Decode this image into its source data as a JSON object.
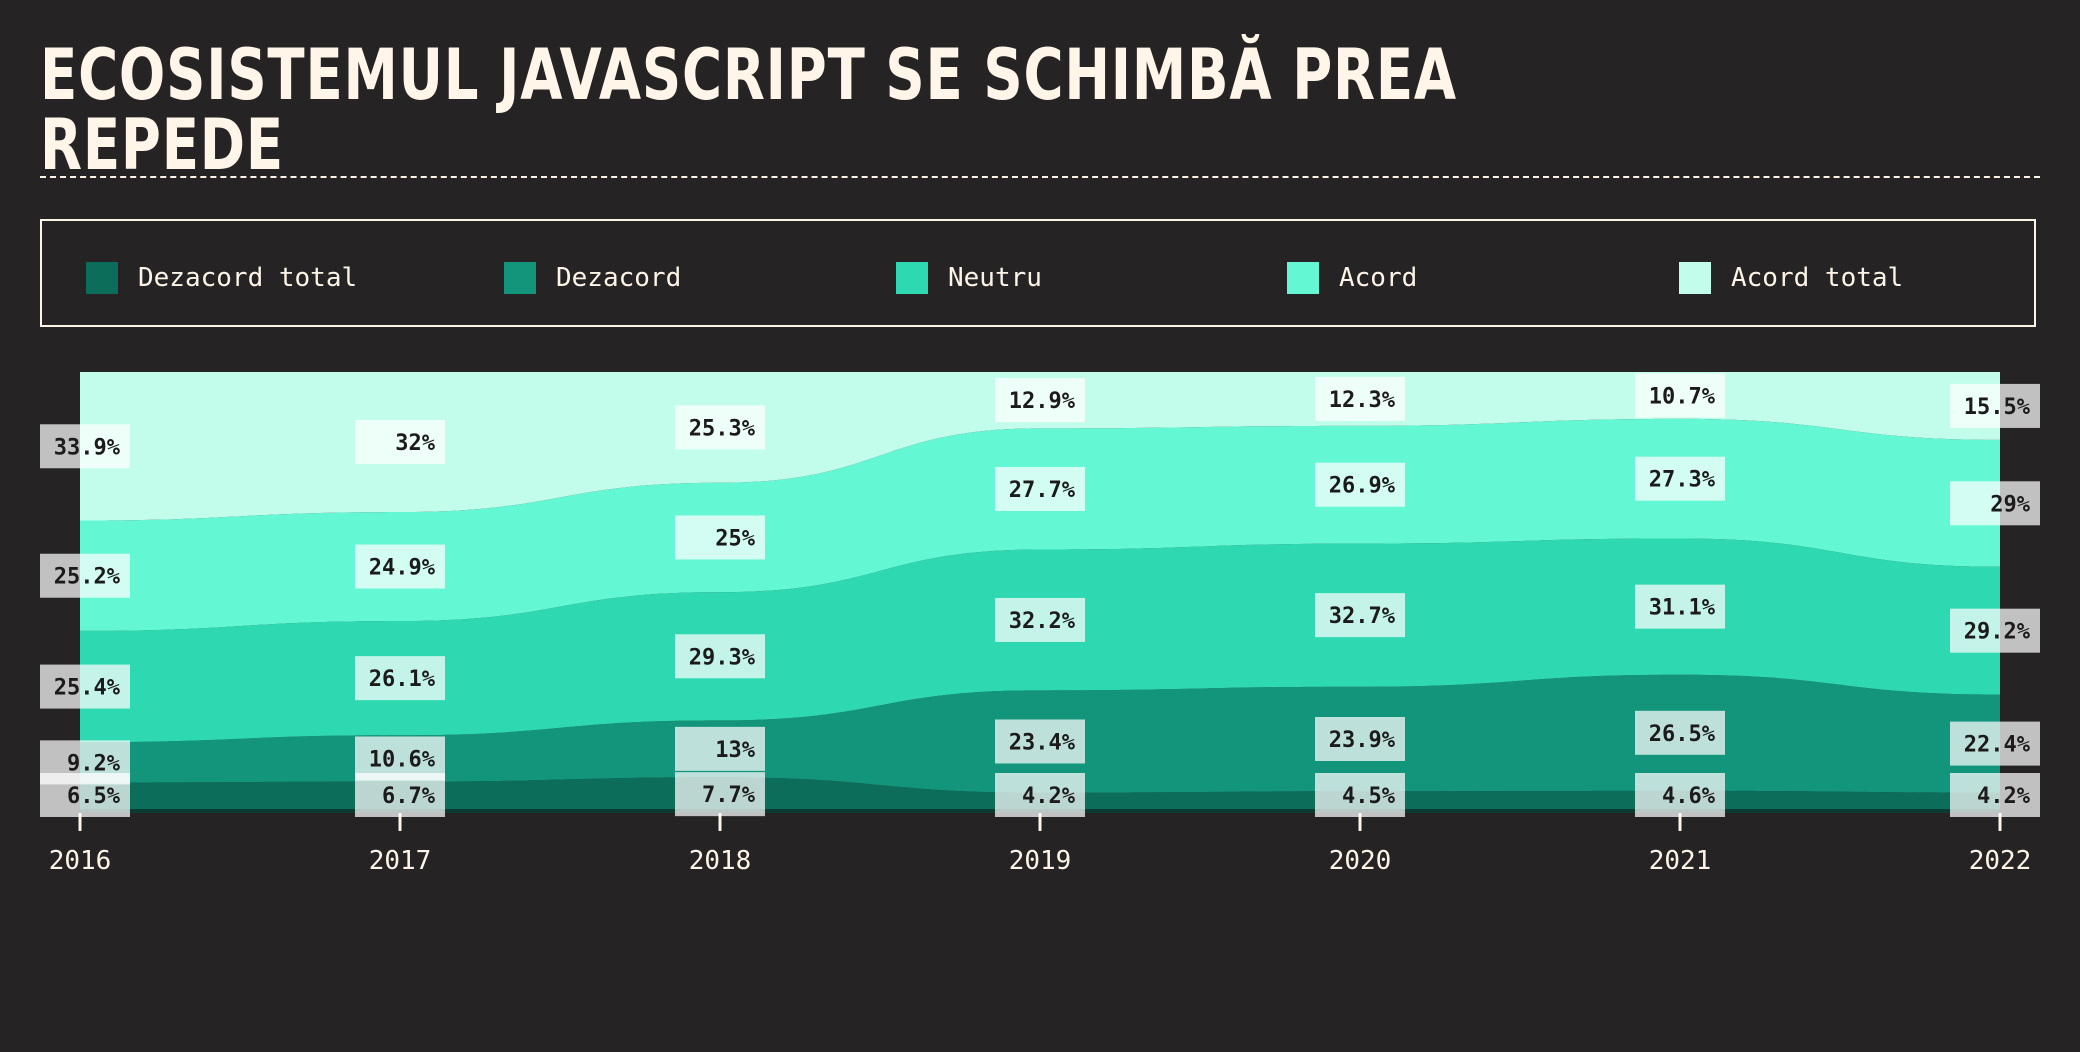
{
  "title": "ECOSISTEMUL JAVASCRIPT SE SCHIMBĂ PREA REPEDE",
  "chart_data": {
    "type": "area",
    "stacked": true,
    "normalized": true,
    "x": [
      "2016",
      "2017",
      "2018",
      "2019",
      "2020",
      "2021",
      "2022"
    ],
    "series": [
      {
        "name": "Dezacord total",
        "color": "#0c6e5a",
        "values": [
          6.5,
          6.7,
          7.7,
          4.2,
          4.5,
          4.6,
          4.2
        ]
      },
      {
        "name": "Dezacord",
        "color": "#13957b",
        "values": [
          9.2,
          10.6,
          13,
          23.4,
          23.9,
          26.5,
          22.4
        ]
      },
      {
        "name": "Neutru",
        "color": "#2ed8b0",
        "values": [
          25.4,
          26.1,
          29.3,
          32.2,
          32.7,
          31.1,
          29.2
        ]
      },
      {
        "name": "Acord",
        "color": "#63f7d3",
        "values": [
          25.2,
          24.9,
          25,
          27.7,
          26.9,
          27.3,
          29
        ]
      },
      {
        "name": "Acord total",
        "color": "#c2fdeb",
        "values": [
          33.9,
          32,
          25.3,
          12.9,
          12.3,
          10.7,
          15.5
        ]
      }
    ],
    "legend_position": "top",
    "grid": false
  }
}
